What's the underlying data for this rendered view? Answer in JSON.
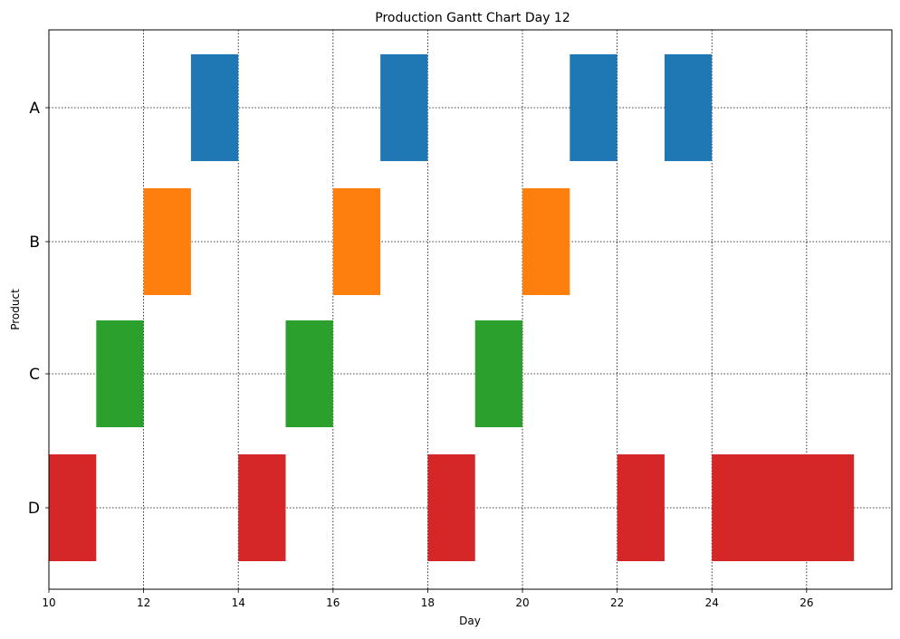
{
  "chart_data": {
    "type": "bar",
    "orientation": "horizontal-gantt",
    "title": "Production Gantt Chart Day 12",
    "xlabel": "Day",
    "ylabel": "Product",
    "xlim": [
      10,
      27.8
    ],
    "xticks": [
      10,
      12,
      14,
      16,
      18,
      20,
      22,
      24,
      26
    ],
    "categories": [
      "A",
      "B",
      "C",
      "D"
    ],
    "grid": true,
    "series": [
      {
        "name": "A",
        "color": "#1f77b4",
        "tasks": [
          {
            "start": 13,
            "end": 14
          },
          {
            "start": 17,
            "end": 18
          },
          {
            "start": 21,
            "end": 22
          },
          {
            "start": 23,
            "end": 24
          }
        ]
      },
      {
        "name": "B",
        "color": "#ff7f0e",
        "tasks": [
          {
            "start": 12,
            "end": 13
          },
          {
            "start": 16,
            "end": 17
          },
          {
            "start": 20,
            "end": 21
          }
        ]
      },
      {
        "name": "C",
        "color": "#2ca02c",
        "tasks": [
          {
            "start": 11,
            "end": 12
          },
          {
            "start": 15,
            "end": 16
          },
          {
            "start": 19,
            "end": 20
          }
        ]
      },
      {
        "name": "D",
        "color": "#d62728",
        "tasks": [
          {
            "start": 10,
            "end": 11
          },
          {
            "start": 14,
            "end": 15
          },
          {
            "start": 18,
            "end": 19
          },
          {
            "start": 22,
            "end": 23
          },
          {
            "start": 24,
            "end": 27
          }
        ]
      }
    ]
  }
}
